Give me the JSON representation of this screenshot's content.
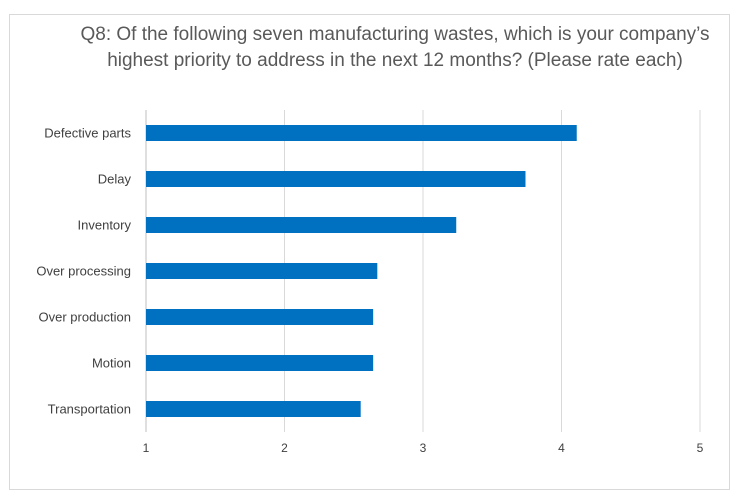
{
  "chart_data": {
    "type": "bar",
    "orientation": "horizontal",
    "title": "Q8: Of the following seven manufacturing wastes, which is your company’s highest priority to address in the next 12 months? (Please rate each)",
    "categories": [
      "Defective parts",
      "Delay",
      "Inventory",
      "Over processing",
      "Over production",
      "Motion",
      "Transportation"
    ],
    "values": [
      4.11,
      3.74,
      3.24,
      2.67,
      2.64,
      2.64,
      2.55
    ],
    "xlim": [
      1,
      5
    ],
    "xticks": [
      "1",
      "2",
      "3",
      "4",
      "5"
    ],
    "xlabel": "",
    "ylabel": "",
    "grid": "vertical",
    "legend": "none",
    "bar_color": "#0070C0",
    "grid_color": "#d9d9d9",
    "axis_color": "#bfbfbf"
  }
}
